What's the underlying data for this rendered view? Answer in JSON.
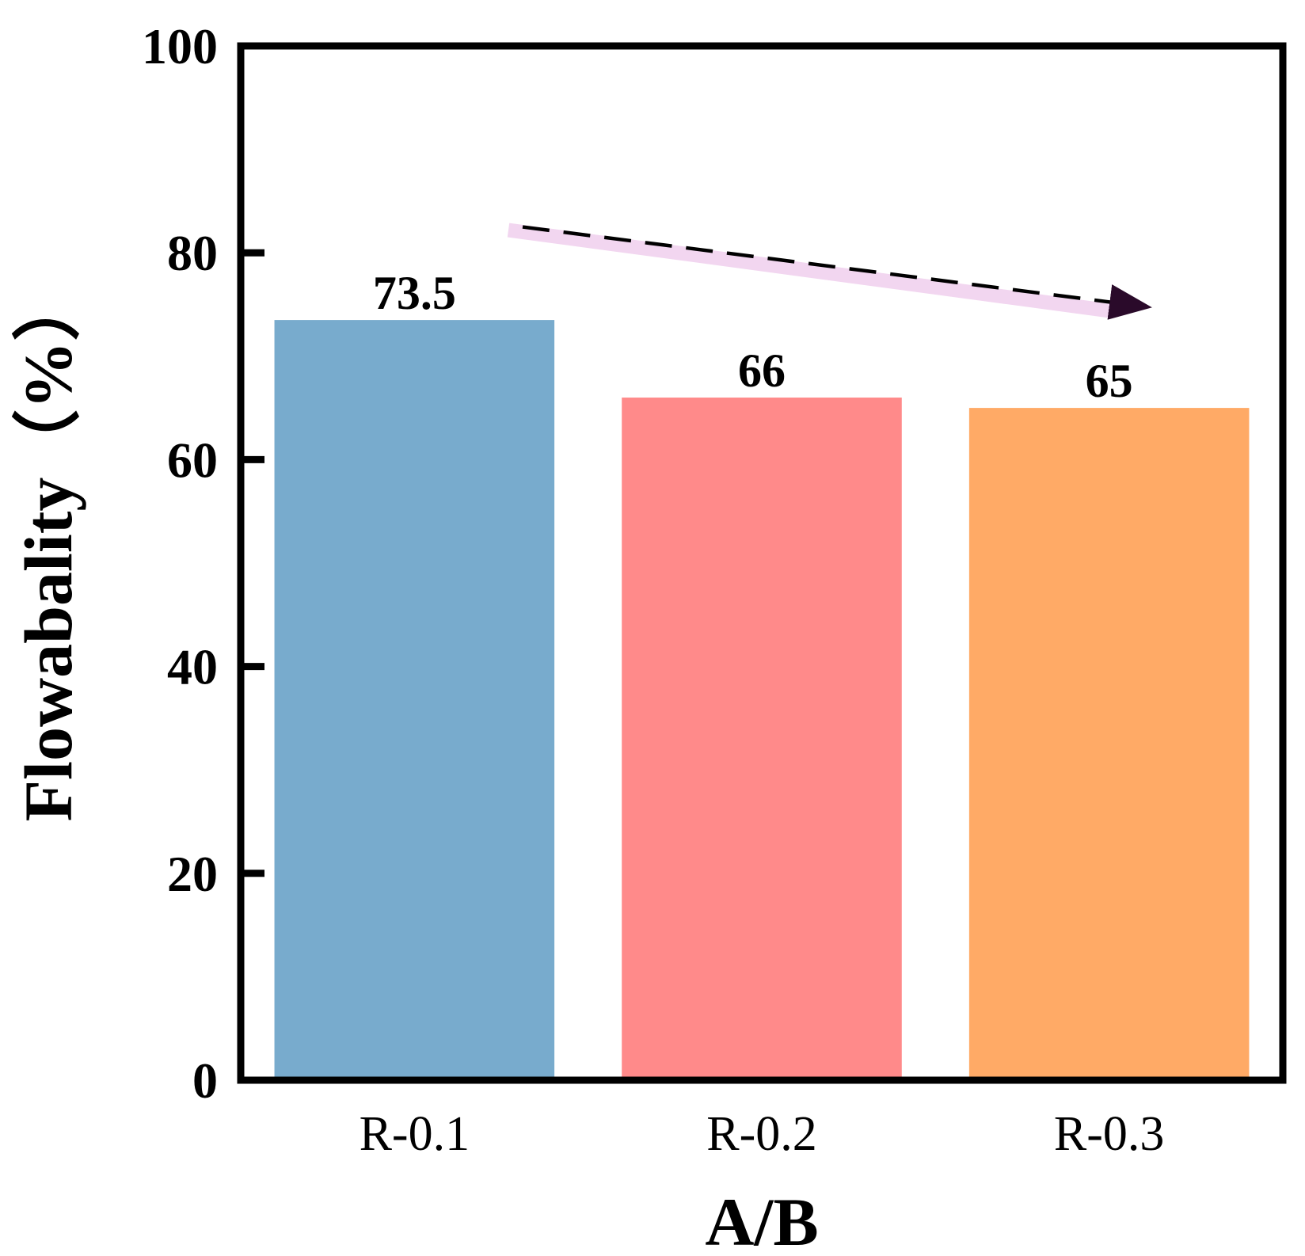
{
  "chart_data": {
    "type": "bar",
    "title": "",
    "xlabel": "A/B",
    "ylabel": "Flowabality（%）",
    "categories": [
      "R-0.1",
      "R-0.2",
      "R-0.3"
    ],
    "values": [
      73.5,
      66,
      65
    ],
    "data_labels": [
      "73.5",
      "66",
      "65"
    ],
    "colors": [
      "#78abcd",
      "#ff8a8a",
      "#ffaa66"
    ],
    "ylim": [
      0,
      100
    ],
    "yticks": [
      0,
      20,
      40,
      60,
      80,
      100
    ],
    "grid": false,
    "annotation": {
      "type": "dashed-arrow",
      "description": "decreasing trend",
      "start_y_value": 82.5,
      "end_y_value": 74.8,
      "color": "#000000",
      "highlight_color": "#f2d6f0"
    }
  }
}
